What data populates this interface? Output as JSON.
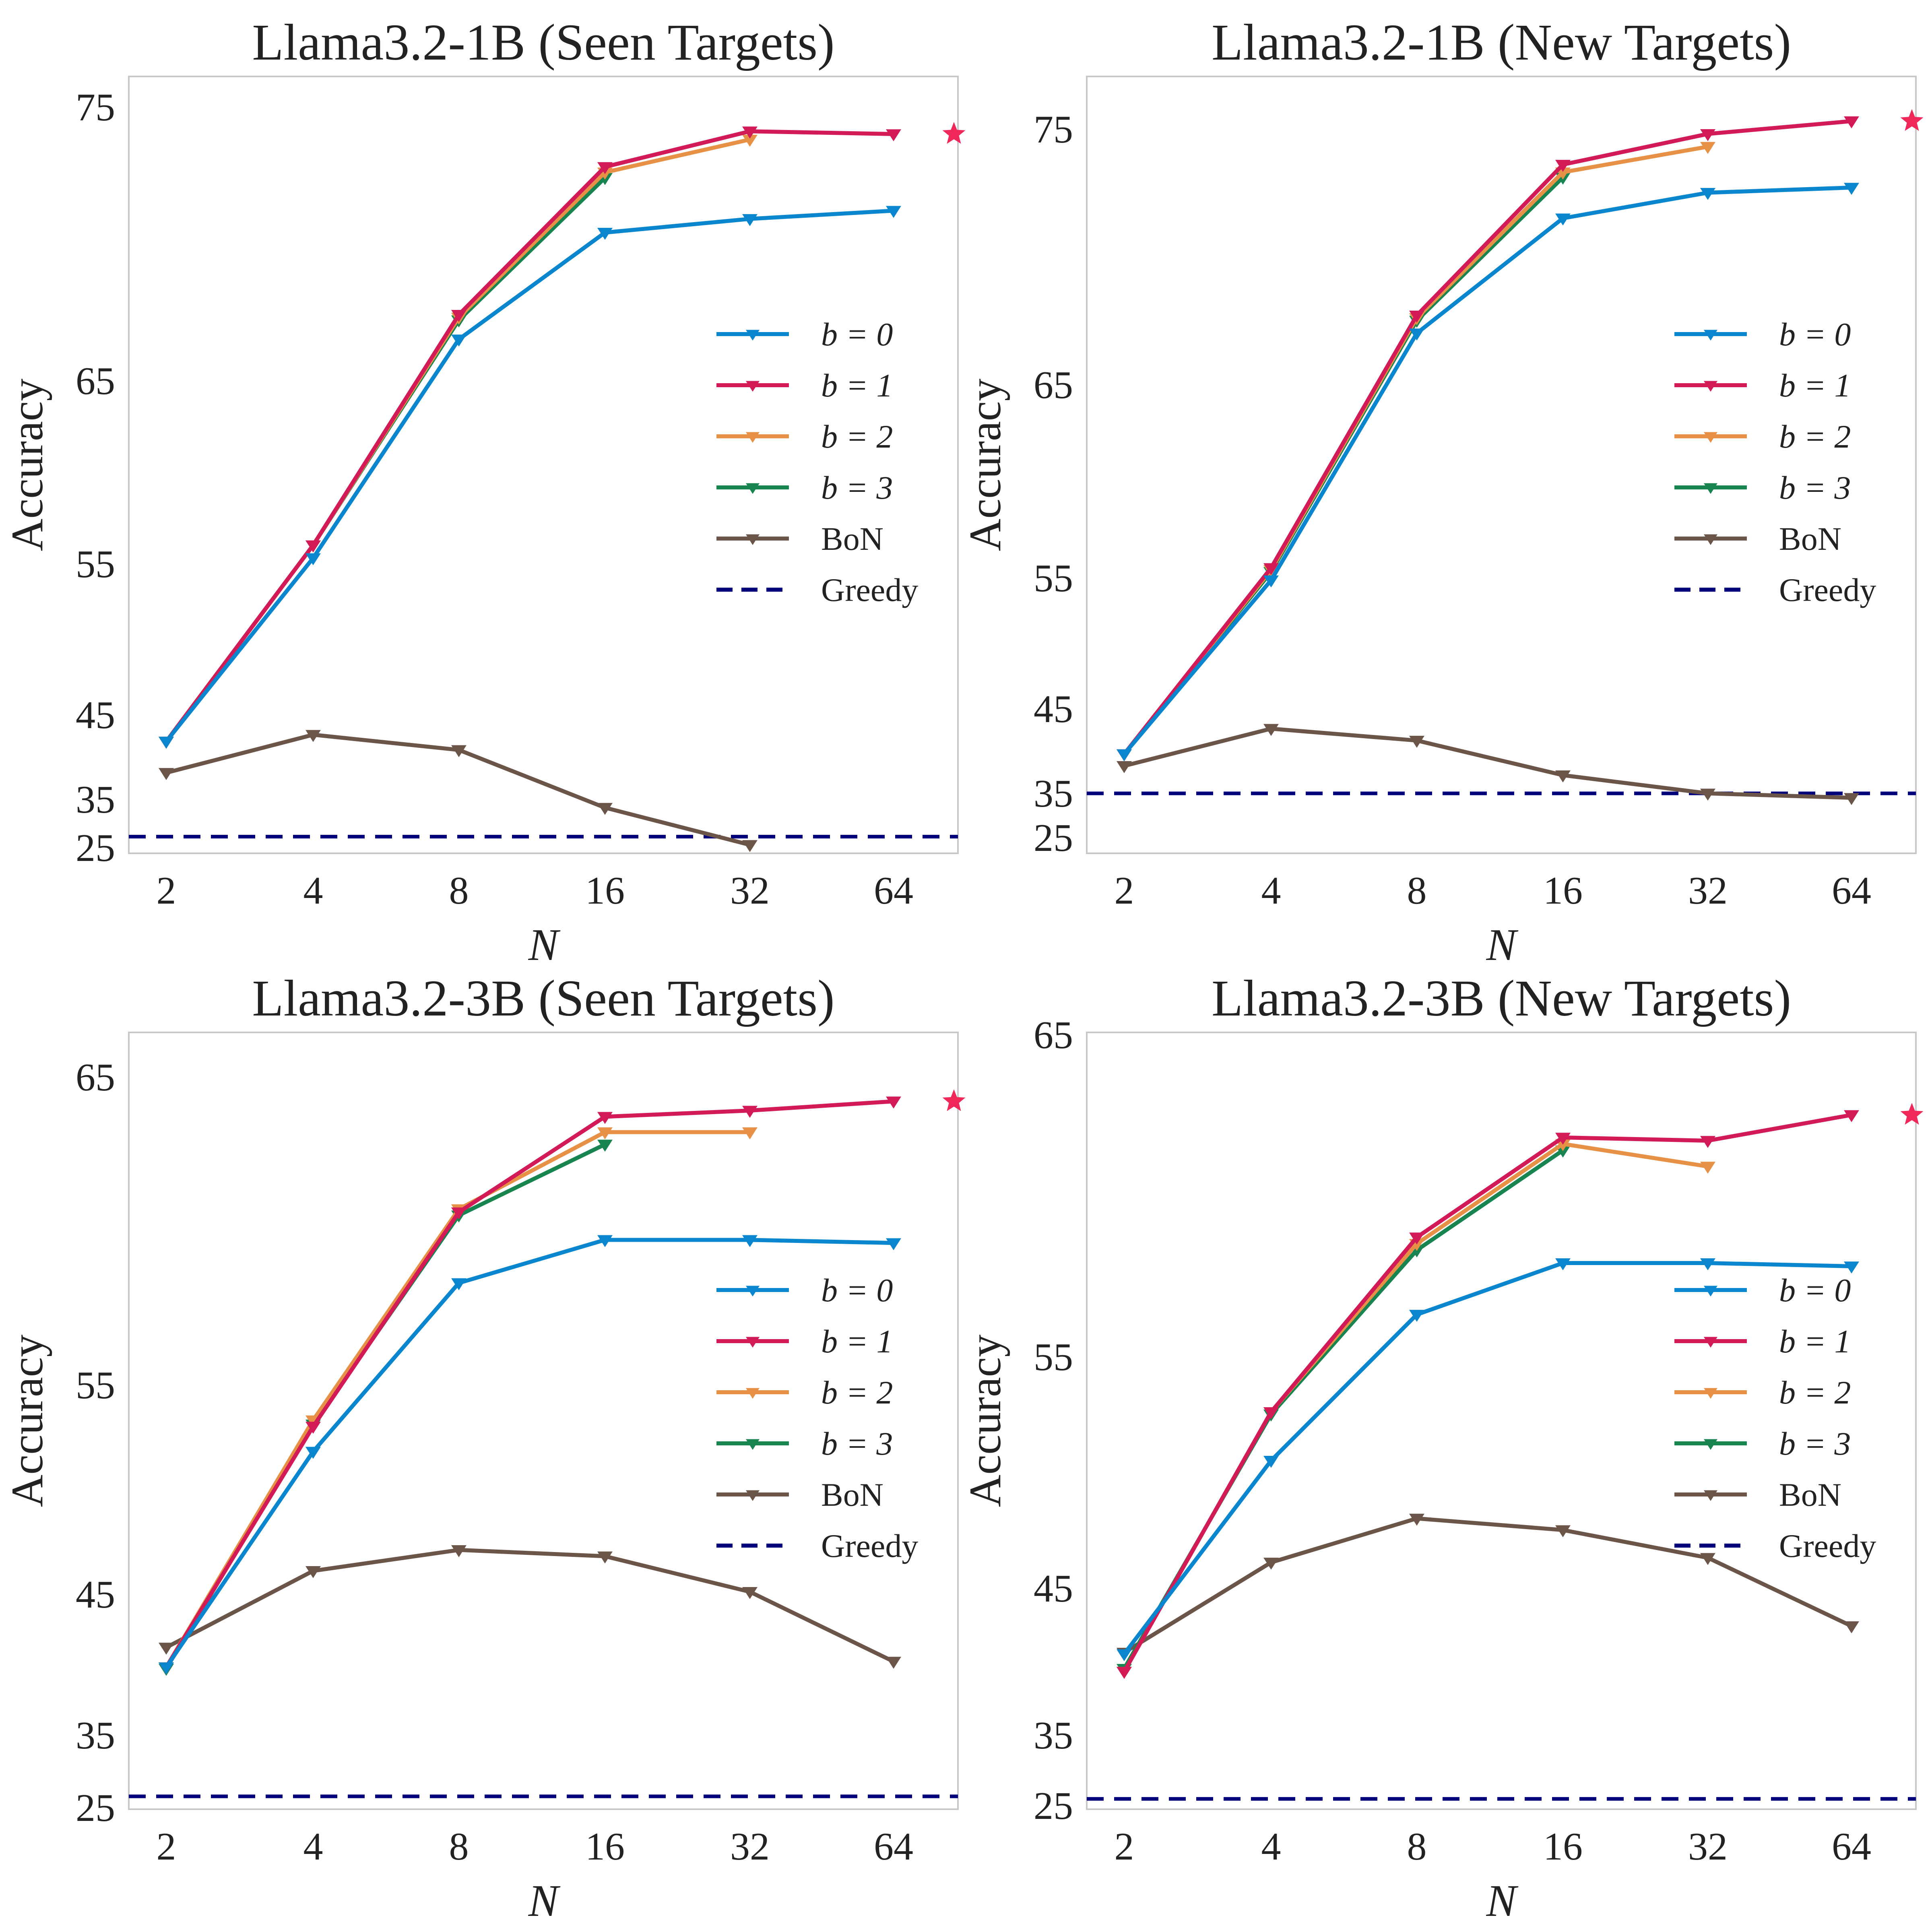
{
  "chart_data": [
    {
      "type": "line",
      "title": "Llama3.2-1B (Seen Targets)",
      "xlabel": "N",
      "ylabel": "Accuracy",
      "x_ticks": [
        "2",
        "4",
        "8",
        "16",
        "32",
        "64"
      ],
      "y_ticks": [
        25,
        35,
        45,
        55,
        65,
        75
      ],
      "grid": false,
      "legend_position": "right",
      "series": [
        {
          "name": "b = 0",
          "color": "#0a86cf",
          "x": [
            "2",
            "4",
            "8",
            "16",
            "32",
            "64"
          ],
          "values": [
            41.8,
            55.3,
            66.5,
            70.4,
            70.9,
            71.2
          ]
        },
        {
          "name": "b = 1",
          "color": "#d21a56",
          "x": [
            "2",
            "4",
            "8",
            "16",
            "32",
            "64"
          ],
          "values": [
            41.8,
            56.0,
            67.4,
            72.8,
            74.1,
            74.0
          ]
        },
        {
          "name": "b = 2",
          "color": "#e69146",
          "x": [
            "2",
            "4",
            "8",
            "16",
            "32"
          ],
          "values": [
            41.8,
            56.0,
            67.3,
            72.6,
            73.8
          ]
        },
        {
          "name": "b = 3",
          "color": "#18844f",
          "x": [
            "2",
            "4",
            "8",
            "16"
          ],
          "values": [
            41.8,
            56.0,
            67.2,
            72.4
          ]
        },
        {
          "name": "BoN",
          "color": "#6b5448",
          "x": [
            "2",
            "4",
            "8",
            "16",
            "32"
          ],
          "values": [
            38.1,
            42.6,
            40.8,
            33.2,
            25.5
          ]
        }
      ],
      "reference_lines": [
        {
          "name": "Greedy",
          "color": "#00007a",
          "style": "dashed",
          "value": 27.2
        }
      ],
      "best_marker": {
        "symbol": "star",
        "color": "#f0285a",
        "series": "b = 1",
        "value": 74.0
      }
    },
    {
      "type": "line",
      "title": "Llama3.2-1B (New Targets)",
      "xlabel": "N",
      "ylabel": "Accuracy",
      "x_ticks": [
        "2",
        "4",
        "8",
        "16",
        "32",
        "64"
      ],
      "y_ticks": [
        25,
        35,
        45,
        55,
        65,
        75
      ],
      "grid": false,
      "legend_position": "right",
      "series": [
        {
          "name": "b = 0",
          "color": "#0a86cf",
          "x": [
            "2",
            "4",
            "8",
            "16",
            "32",
            "64"
          ],
          "values": [
            39.6,
            54.8,
            67.0,
            71.5,
            72.5,
            72.7
          ]
        },
        {
          "name": "b = 1",
          "color": "#d21a56",
          "x": [
            "2",
            "4",
            "8",
            "16",
            "32",
            "64"
          ],
          "values": [
            39.6,
            55.5,
            67.7,
            73.6,
            74.8,
            75.3
          ]
        },
        {
          "name": "b = 2",
          "color": "#e69146",
          "x": [
            "2",
            "4",
            "8",
            "16",
            "32"
          ],
          "values": [
            39.6,
            55.4,
            67.6,
            73.3,
            74.3
          ]
        },
        {
          "name": "b = 3",
          "color": "#18844f",
          "x": [
            "2",
            "4",
            "8",
            "16"
          ],
          "values": [
            39.6,
            55.3,
            67.5,
            73.1
          ]
        },
        {
          "name": "BoN",
          "color": "#6b5448",
          "x": [
            "2",
            "4",
            "8",
            "16",
            "32",
            "64"
          ],
          "values": [
            38.2,
            42.6,
            41.2,
            37.1,
            34.9,
            33.9
          ]
        }
      ],
      "reference_lines": [
        {
          "name": "Greedy",
          "color": "#00007a",
          "style": "dashed",
          "value": 34.9
        }
      ],
      "best_marker": {
        "symbol": "star",
        "color": "#f0285a",
        "series": "b = 1",
        "value": 75.3
      }
    },
    {
      "type": "line",
      "title": "Llama3.2-3B (Seen Targets)",
      "xlabel": "N",
      "ylabel": "Accuracy",
      "x_ticks": [
        "2",
        "4",
        "8",
        "16",
        "32",
        "64"
      ],
      "y_ticks": [
        25,
        35,
        45,
        55,
        65
      ],
      "grid": false,
      "legend_position": "right",
      "series": [
        {
          "name": "b = 0",
          "color": "#0a86cf",
          "x": [
            "2",
            "4",
            "8",
            "16",
            "32",
            "64"
          ],
          "values": [
            39.8,
            51.8,
            58.3,
            59.7,
            59.7,
            59.6
          ]
        },
        {
          "name": "b = 1",
          "color": "#d21a56",
          "x": [
            "2",
            "4",
            "8",
            "16",
            "32",
            "64"
          ],
          "values": [
            39.8,
            53.0,
            60.6,
            63.7,
            63.9,
            64.2
          ]
        },
        {
          "name": "b = 2",
          "color": "#e69146",
          "x": [
            "2",
            "4",
            "8",
            "16",
            "32"
          ],
          "values": [
            39.8,
            53.3,
            60.7,
            63.2,
            63.2
          ]
        },
        {
          "name": "b = 3",
          "color": "#18844f",
          "x": [
            "2",
            "4",
            "8",
            "16"
          ],
          "values": [
            39.7,
            53.1,
            60.5,
            62.8
          ]
        },
        {
          "name": "BoN",
          "color": "#6b5448",
          "x": [
            "2",
            "4",
            "8",
            "16",
            "32",
            "64"
          ],
          "values": [
            41.2,
            46.1,
            47.1,
            46.8,
            45.1,
            40.2
          ]
        }
      ],
      "reference_lines": [
        {
          "name": "Greedy",
          "color": "#00007a",
          "style": "dashed",
          "value": 26.5
        }
      ],
      "best_marker": {
        "symbol": "star",
        "color": "#f0285a",
        "series": "b = 1",
        "value": 64.2
      }
    },
    {
      "type": "line",
      "title": "Llama3.2-3B (New Targets)",
      "xlabel": "N",
      "ylabel": "Accuracy",
      "x_ticks": [
        "2",
        "4",
        "8",
        "16",
        "32",
        "64"
      ],
      "y_ticks": [
        25,
        35,
        45,
        55,
        65
      ],
      "grid": false,
      "legend_position": "right",
      "series": [
        {
          "name": "b = 0",
          "color": "#0a86cf",
          "x": [
            "2",
            "4",
            "8",
            "16",
            "32",
            "64"
          ],
          "values": [
            40.5,
            50.5,
            56.3,
            57.9,
            57.9,
            57.8
          ]
        },
        {
          "name": "b = 1",
          "color": "#d21a56",
          "x": [
            "2",
            "4",
            "8",
            "16",
            "32",
            "64"
          ],
          "values": [
            39.3,
            52.6,
            58.7,
            61.8,
            61.7,
            62.5
          ]
        },
        {
          "name": "b = 2",
          "color": "#e69146",
          "x": [
            "2",
            "4",
            "8",
            "16",
            "32"
          ],
          "values": [
            39.3,
            52.6,
            58.5,
            61.6,
            60.9
          ]
        },
        {
          "name": "b = 3",
          "color": "#18844f",
          "x": [
            "2",
            "4",
            "8",
            "16"
          ],
          "values": [
            39.5,
            52.5,
            58.3,
            61.4
          ]
        },
        {
          "name": "BoN",
          "color": "#6b5448",
          "x": [
            "2",
            "4",
            "8",
            "16",
            "32",
            "64"
          ],
          "values": [
            40.6,
            46.1,
            48.0,
            47.5,
            46.3,
            42.4
          ]
        }
      ],
      "reference_lines": [
        {
          "name": "Greedy",
          "color": "#00007a",
          "style": "dashed",
          "value": 25.9
        }
      ],
      "best_marker": {
        "symbol": "star",
        "color": "#f0285a",
        "series": "b = 1",
        "value": 62.5
      }
    }
  ]
}
